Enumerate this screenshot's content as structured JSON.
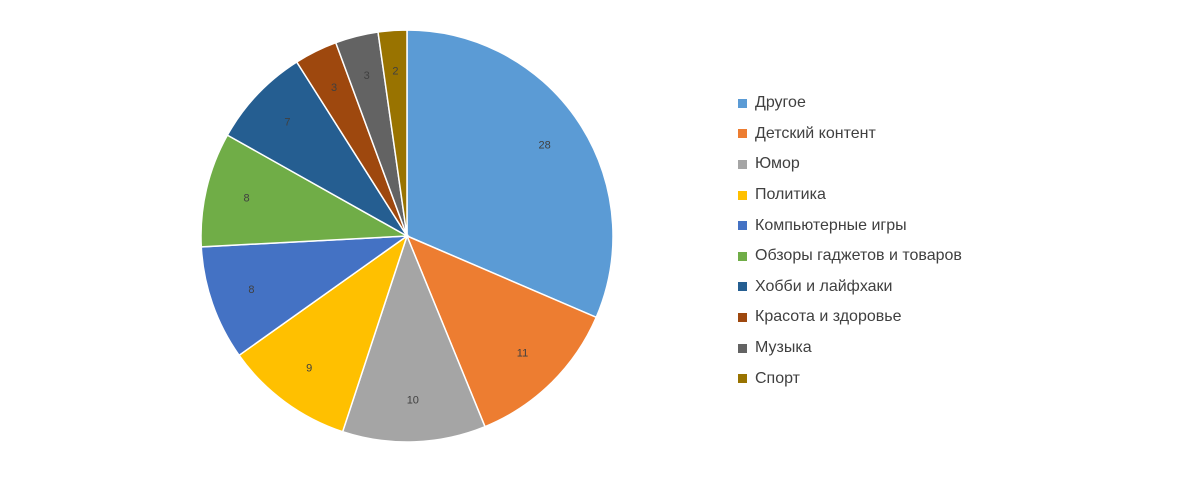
{
  "chart_data": {
    "type": "pie",
    "title": "",
    "categories": [
      "Другое",
      "Детский контент",
      "Юмор",
      "Политика",
      "Компьютерные игры",
      "Обзоры гаджетов и товаров",
      "Хобби и лайфхаки",
      "Красота и здоровье",
      "Музыка",
      "Спорт"
    ],
    "values": [
      28,
      11,
      10,
      9,
      8,
      8,
      7,
      3,
      3,
      2
    ],
    "colors": [
      "#5B9BD5",
      "#ED7D31",
      "#A5A5A5",
      "#FFC000",
      "#4472C4",
      "#70AD47",
      "#255E91",
      "#9E480E",
      "#636363",
      "#997300"
    ],
    "data_labels": true,
    "legend_position": "right"
  }
}
